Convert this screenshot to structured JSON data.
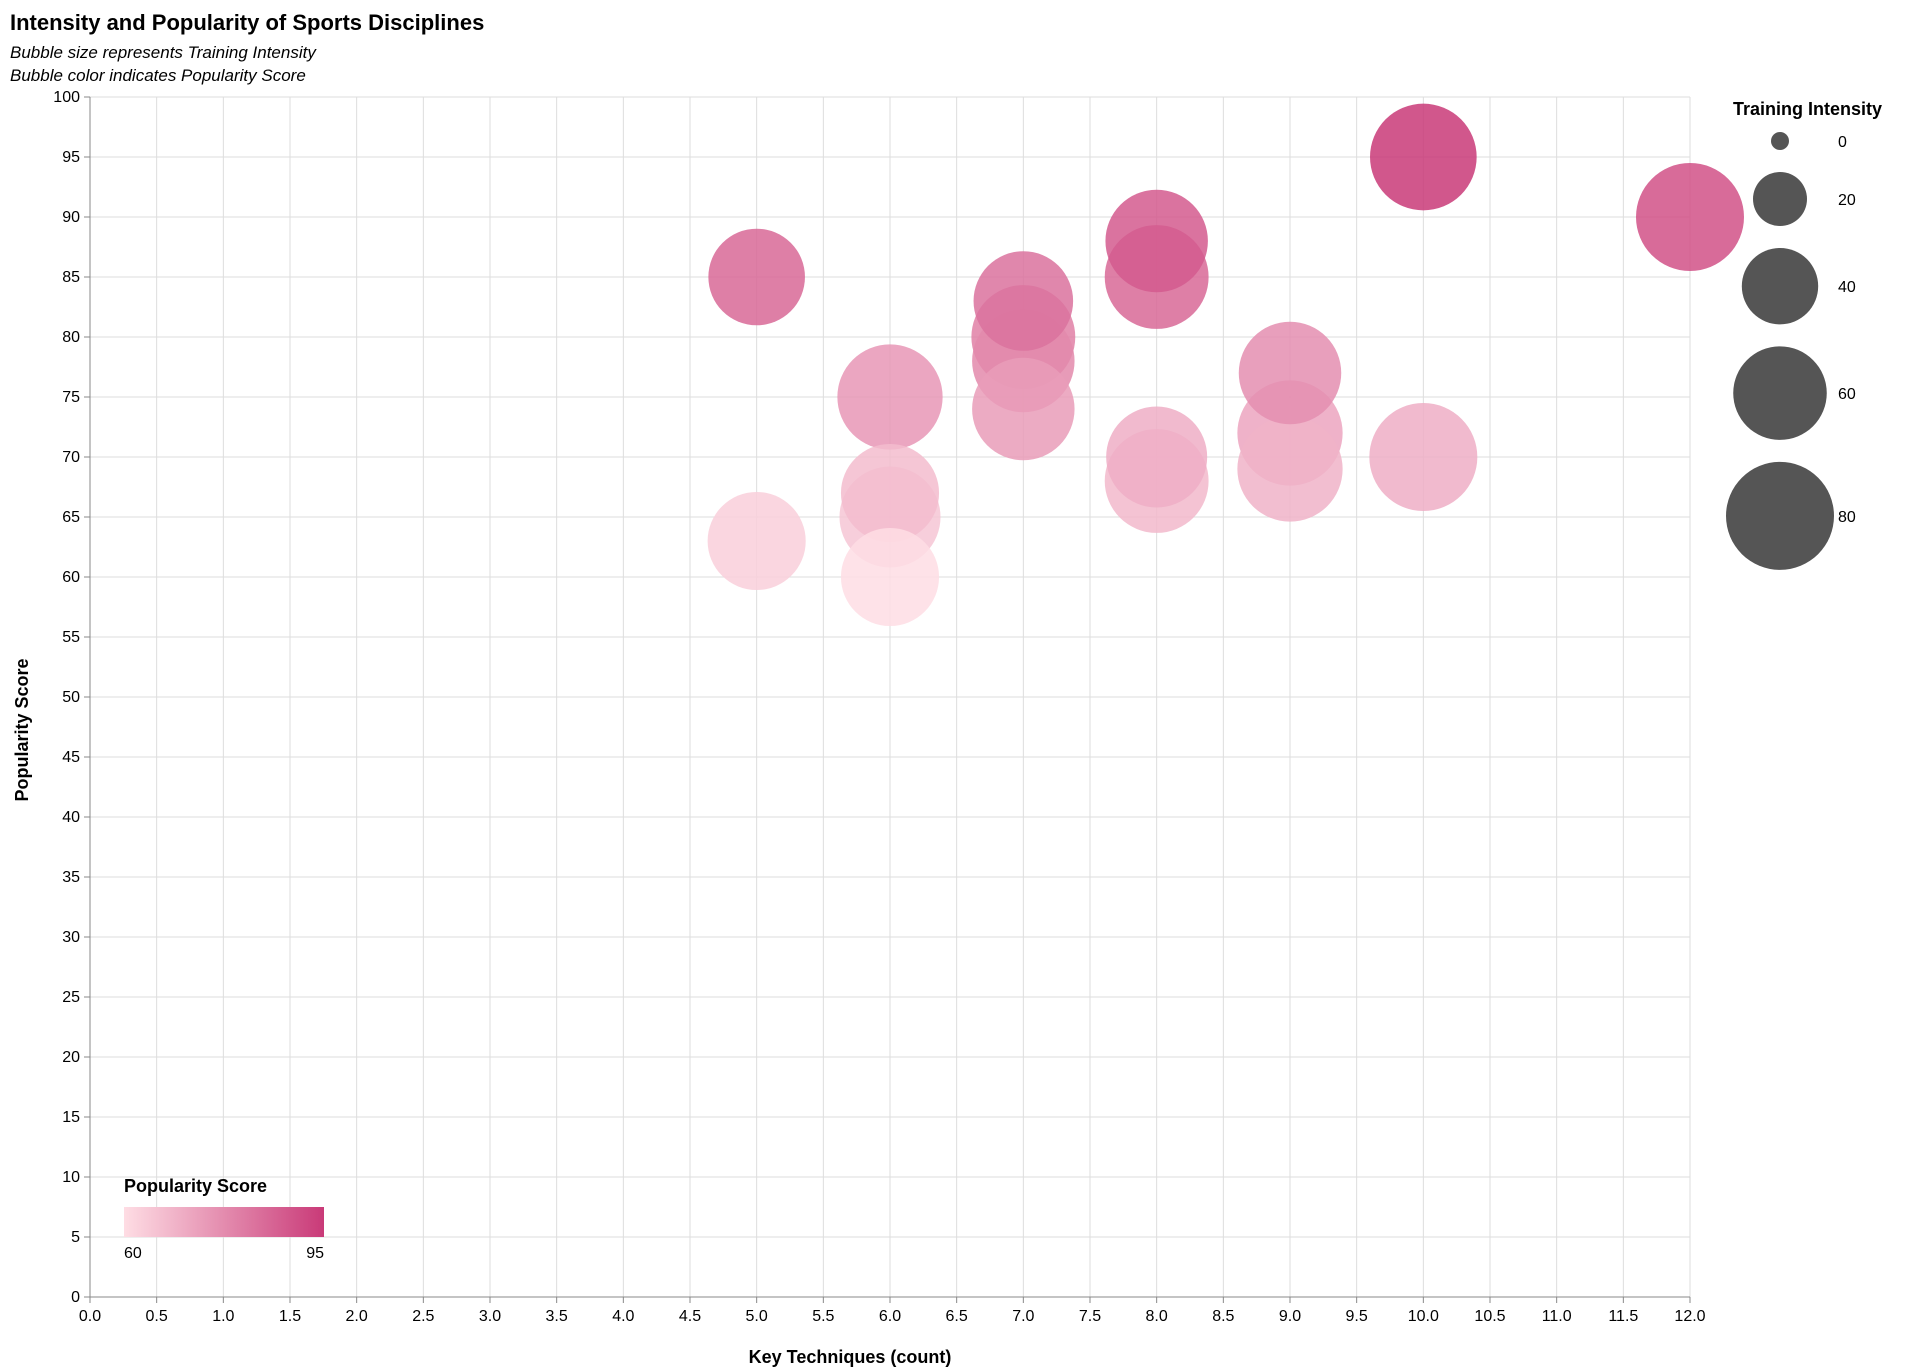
{
  "chart_data": {
    "type": "scatter",
    "title": "Intensity and Popularity of Sports Disciplines",
    "subtitle": [
      "Bubble size represents Training Intensity",
      "Bubble color indicates Popularity Score"
    ],
    "xlabel": "Key Techniques (count)",
    "ylabel": "Popularity Score",
    "xlim": [
      0,
      12
    ],
    "ylim": [
      0,
      100
    ],
    "x_tick_step": 0.5,
    "y_tick_step": 5,
    "grid": true,
    "color_scale": {
      "field": "Popularity Score",
      "domain": [
        60,
        95
      ],
      "range": [
        "#fedde4",
        "#c93a78"
      ]
    },
    "size_scale": {
      "field": "Training Intensity",
      "domain": [
        0,
        80
      ]
    },
    "points": [
      {
        "x": 10,
        "y": 95,
        "intensity": 78
      },
      {
        "x": 12,
        "y": 90,
        "intensity": 80
      },
      {
        "x": 8,
        "y": 88,
        "intensity": 72
      },
      {
        "x": 8,
        "y": 85,
        "intensity": 74
      },
      {
        "x": 5,
        "y": 85,
        "intensity": 64
      },
      {
        "x": 7,
        "y": 83,
        "intensity": 68
      },
      {
        "x": 7,
        "y": 80,
        "intensity": 74
      },
      {
        "x": 7,
        "y": 78,
        "intensity": 72
      },
      {
        "x": 9,
        "y": 77,
        "intensity": 72
      },
      {
        "x": 6,
        "y": 75,
        "intensity": 76
      },
      {
        "x": 7,
        "y": 74,
        "intensity": 72
      },
      {
        "x": 9,
        "y": 72,
        "intensity": 76
      },
      {
        "x": 8,
        "y": 70,
        "intensity": 70
      },
      {
        "x": 10,
        "y": 70,
        "intensity": 80
      },
      {
        "x": 9,
        "y": 69,
        "intensity": 76
      },
      {
        "x": 8,
        "y": 68,
        "intensity": 74
      },
      {
        "x": 6,
        "y": 67,
        "intensity": 66
      },
      {
        "x": 6,
        "y": 65,
        "intensity": 70
      },
      {
        "x": 5,
        "y": 63,
        "intensity": 66
      },
      {
        "x": 6,
        "y": 60,
        "intensity": 66
      }
    ],
    "legend_size": {
      "title": "Training Intensity",
      "position": "top-right",
      "entries": [
        0,
        20,
        40,
        60,
        80
      ]
    },
    "legend_color": {
      "title": "Popularity Score",
      "position": "bottom-left",
      "min_label": "60",
      "max_label": "95"
    }
  }
}
